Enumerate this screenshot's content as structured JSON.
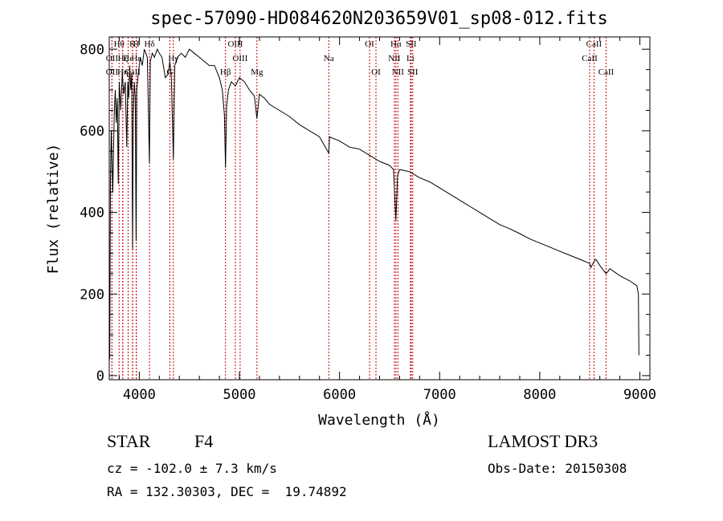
{
  "chart_data": {
    "type": "line",
    "title": "spec-57090-HD084620N203659V01_sp08-012.fits",
    "xlabel": "Wavelength (Å)",
    "ylabel": "Flux (relative)",
    "xlim": [
      3700,
      9100
    ],
    "ylim": [
      -10,
      830
    ],
    "xticks": [
      4000,
      5000,
      6000,
      7000,
      8000,
      9000
    ],
    "yticks": [
      0,
      200,
      400,
      600,
      800
    ],
    "series": [
      {
        "name": "flux",
        "x": [
          3700,
          3705,
          3712,
          3720,
          3735,
          3750,
          3760,
          3770,
          3780,
          3790,
          3800,
          3815,
          3830,
          3845,
          3860,
          3875,
          3885,
          3895,
          3905,
          3915,
          3925,
          3933,
          3940,
          3950,
          3960,
          3968,
          3975,
          3990,
          4010,
          4030,
          4050,
          4080,
          4101,
          4110,
          4130,
          4150,
          4180,
          4200,
          4226,
          4240,
          4260,
          4290,
          4305,
          4320,
          4340,
          4355,
          4380,
          4420,
          4460,
          4500,
          4550,
          4600,
          4650,
          4700,
          4750,
          4800,
          4830,
          4850,
          4861,
          4872,
          4890,
          4920,
          4960,
          5000,
          5050,
          5100,
          5150,
          5175,
          5200,
          5250,
          5300,
          5400,
          5500,
          5600,
          5700,
          5800,
          5893,
          5900,
          6000,
          6100,
          6200,
          6300,
          6400,
          6500,
          6540,
          6563,
          6580,
          6600,
          6700,
          6800,
          6900,
          7000,
          7100,
          7200,
          7300,
          7400,
          7500,
          7600,
          7700,
          7800,
          7900,
          8000,
          8100,
          8200,
          8300,
          8400,
          8498,
          8510,
          8542,
          8560,
          8600,
          8662,
          8680,
          8700,
          8800,
          8900,
          8970,
          8985,
          8990
        ],
        "values": [
          230,
          40,
          480,
          600,
          450,
          640,
          700,
          620,
          680,
          470,
          720,
          650,
          740,
          690,
          720,
          560,
          720,
          680,
          760,
          700,
          740,
          310,
          640,
          720,
          680,
          330,
          700,
          740,
          780,
          760,
          800,
          780,
          520,
          770,
          790,
          780,
          800,
          790,
          780,
          760,
          730,
          740,
          770,
          730,
          530,
          760,
          780,
          790,
          780,
          800,
          790,
          780,
          770,
          760,
          760,
          730,
          700,
          640,
          510,
          660,
          700,
          720,
          710,
          730,
          720,
          700,
          685,
          630,
          690,
          680,
          665,
          650,
          635,
          615,
          600,
          585,
          545,
          585,
          575,
          560,
          555,
          540,
          525,
          515,
          505,
          380,
          490,
          505,
          500,
          485,
          475,
          460,
          445,
          430,
          415,
          400,
          385,
          370,
          360,
          348,
          335,
          325,
          315,
          305,
          295,
          285,
          275,
          265,
          280,
          285,
          270,
          250,
          255,
          262,
          245,
          232,
          220,
          200,
          50
        ]
      }
    ],
    "line_markers": [
      {
        "label": "Hθ",
        "x": 3798,
        "row": 0
      },
      {
        "label": "K",
        "x": 3934,
        "row": 0
      },
      {
        "label": "H",
        "x": 3970,
        "row": 0
      },
      {
        "label": "Hδ",
        "x": 4102,
        "row": 0
      },
      {
        "label": "OII",
        "x": 3727,
        "row": 1
      },
      {
        "label": "He",
        "x": 3889,
        "row": 1
      },
      {
        "label": "Hζ",
        "x": 3835,
        "row": 1
      },
      {
        "label": "Hε",
        "x": 3970,
        "row": 1
      },
      {
        "label": "OII",
        "x": 3727,
        "row": 2
      },
      {
        "label": "Hη",
        "x": 3835,
        "row": 2
      },
      {
        "label": "CaII",
        "x": 3934,
        "row": 2
      },
      {
        "label": "Hβ",
        "x": 4861,
        "row": 3
      },
      {
        "label": "OIII",
        "x": 4959,
        "row": 4
      },
      {
        "label": "OIII",
        "x": 5007,
        "row": 5
      },
      {
        "label": "Mg",
        "x": 5175,
        "row": 6
      },
      {
        "label": "Na",
        "x": 5893,
        "row": 7
      },
      {
        "label": "OI",
        "x": 6300,
        "row": 8
      },
      {
        "label": "OI",
        "x": 6364,
        "row": 9
      },
      {
        "label": "Hα",
        "x": 6563,
        "row": 10
      },
      {
        "label": "NII",
        "x": 6548,
        "row": 11
      },
      {
        "label": "NII",
        "x": 6583,
        "row": 12
      },
      {
        "label": "SII",
        "x": 6716,
        "row": 13
      },
      {
        "label": "SII",
        "x": 6731,
        "row": 14
      },
      {
        "label": "Li",
        "x": 6708,
        "row": 15
      },
      {
        "label": "CaII",
        "x": 8542,
        "row": 16
      },
      {
        "label": "CaII",
        "x": 8498,
        "row": 17
      },
      {
        "label": "CaII",
        "x": 8662,
        "row": 18
      },
      {
        "label": "G",
        "x": 4305,
        "row": 19
      },
      {
        "label": "Hγ",
        "x": 4340,
        "row": 20
      }
    ]
  },
  "info": {
    "object_class": "STAR",
    "subclass": "F4",
    "survey": "LAMOST DR3",
    "cz": "cz = -102.0 ± 7.3 km/s",
    "obs_date": "Obs-Date: 20150308",
    "coords": "RA = 132.30303, DEC =  19.74892"
  },
  "colors": {
    "axes": "#000000",
    "spectrum": "#000000",
    "marker_line": "#cc0000"
  }
}
